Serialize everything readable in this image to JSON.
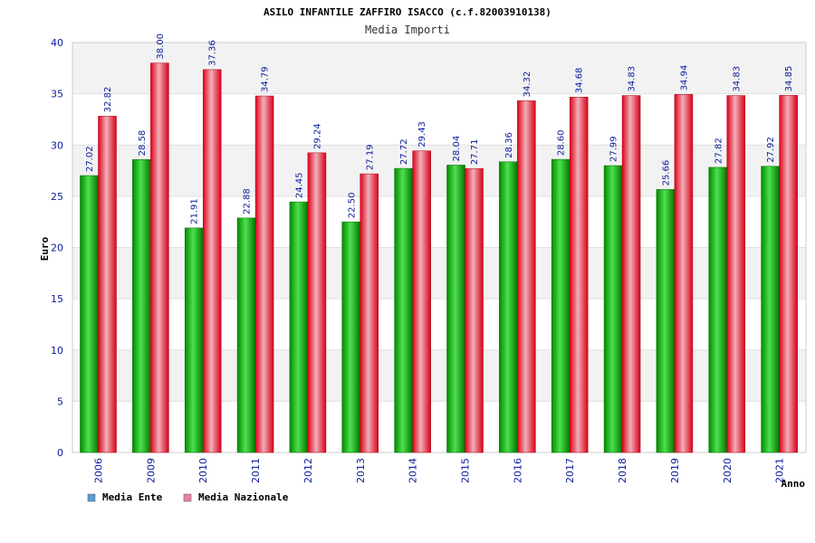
{
  "chart_data": {
    "type": "bar",
    "title": "ASILO INFANTILE ZAFFIRO ISACCO (c.f.82003910138)",
    "subtitle": "Media Importi",
    "xlabel": "Anno",
    "ylabel": "Euro",
    "ylim": [
      0,
      40
    ],
    "yticks": [
      0,
      5,
      10,
      15,
      20,
      25,
      30,
      35,
      40
    ],
    "categories": [
      "2006",
      "2009",
      "2010",
      "2011",
      "2012",
      "2013",
      "2014",
      "2015",
      "2016",
      "2017",
      "2018",
      "2019",
      "2020",
      "2021"
    ],
    "series": [
      {
        "name": "Media Ente",
        "values": [
          27.02,
          28.58,
          21.91,
          22.88,
          24.45,
          22.5,
          27.72,
          28.04,
          28.36,
          28.6,
          27.99,
          25.66,
          27.82,
          27.92
        ],
        "labels": [
          "27.02",
          "28.58",
          "21.91",
          "22.88",
          "24.45",
          "22.50",
          "27.72",
          "28.04",
          "28.36",
          "28.60",
          "27.99",
          "25.66",
          "27.82",
          "27.92"
        ]
      },
      {
        "name": "Media Nazionale",
        "values": [
          32.82,
          38.0,
          37.36,
          34.79,
          29.24,
          27.19,
          29.43,
          27.71,
          34.32,
          34.68,
          34.83,
          34.94,
          34.83,
          34.85
        ],
        "labels": [
          "32.82",
          "38.00",
          "37.36",
          "34.79",
          "29.24",
          "27.19",
          "29.43",
          "27.71",
          "34.32",
          "34.68",
          "34.83",
          "34.94",
          "34.83",
          "34.85"
        ]
      }
    ],
    "legend": [
      {
        "name": "Media Ente",
        "color": "#5b9bd5"
      },
      {
        "name": "Media Nazionale",
        "color": "#e87ea8"
      }
    ],
    "colors": {
      "ente_dark": "#008a00",
      "ente_light": "#4ee04e",
      "naz_dark": "#e0001a",
      "naz_light": "#f0b0b8",
      "band": "#f2f2f2",
      "grid": "#e0e0e0"
    }
  }
}
